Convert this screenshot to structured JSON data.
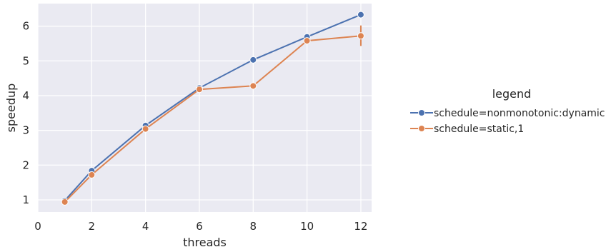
{
  "chart_data": {
    "type": "line",
    "xlabel": "threads",
    "ylabel": "speedup",
    "xlim": [
      0,
      12.4
    ],
    "ylim": [
      0.65,
      6.65
    ],
    "xticks": [
      0,
      2,
      4,
      6,
      8,
      10,
      12
    ],
    "yticks": [
      1,
      2,
      3,
      4,
      5,
      6
    ],
    "grid": true,
    "legend": {
      "title": "legend",
      "placement": "outside-right"
    },
    "series": [
      {
        "name": "schedule=nonmonotonic:dynamic",
        "color": "#4c72b0",
        "x": [
          1,
          2,
          4,
          6,
          8,
          10,
          12
        ],
        "y": [
          0.98,
          1.84,
          3.14,
          4.22,
          5.03,
          5.69,
          6.33
        ]
      },
      {
        "name": "schedule=static,1",
        "color": "#dd8452",
        "x": [
          1,
          2,
          4,
          6,
          8,
          10,
          12
        ],
        "y": [
          0.94,
          1.72,
          3.04,
          4.18,
          4.28,
          5.58,
          5.72
        ],
        "error_bars": [
          {
            "x": 4,
            "low": 2.98,
            "high": 3.08
          },
          {
            "x": 12,
            "low": 5.43,
            "high": 6.02
          }
        ]
      }
    ]
  },
  "style": {
    "plot_background": "#eaeaf2",
    "grid_color": "#ffffff"
  }
}
